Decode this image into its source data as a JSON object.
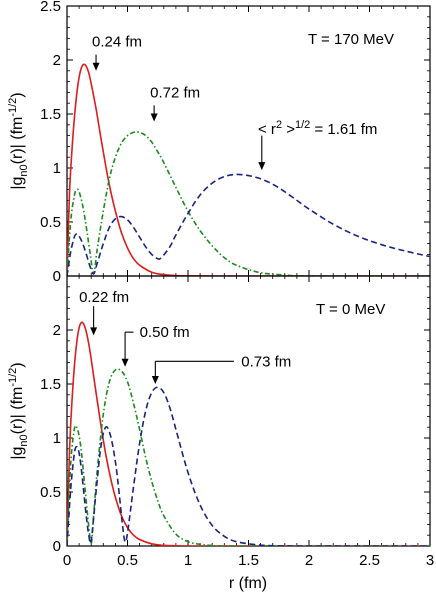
{
  "chart_data": [
    {
      "type": "line",
      "panel": "top",
      "ylabel_main": "|g",
      "ylabel_sub": "n0",
      "ylabel_mid": "(r)| (fm",
      "ylabel_sup": "-1/2",
      "ylabel_end": ")",
      "xlim": [
        0,
        3
      ],
      "ylim": [
        0,
        2.5
      ],
      "y_ticks": [
        "0",
        "0.5",
        "1",
        "1.5",
        "2",
        "2.5"
      ],
      "grid": false,
      "condition_label": "T = 170 MeV",
      "series": [
        {
          "color": "#dd1c1c",
          "style": "solid",
          "x": [
            0,
            0.02,
            0.04,
            0.06,
            0.08,
            0.1,
            0.12,
            0.14,
            0.16,
            0.18,
            0.2,
            0.24,
            0.28,
            0.32,
            0.36,
            0.4,
            0.45,
            0.5,
            0.55,
            0.6,
            0.7,
            0.8,
            0.9,
            1.0,
            1.2,
            1.4,
            3.0
          ],
          "y": [
            0,
            0.75,
            1.15,
            1.45,
            1.68,
            1.84,
            1.93,
            1.96,
            1.94,
            1.88,
            1.78,
            1.55,
            1.28,
            1.02,
            0.79,
            0.6,
            0.4,
            0.26,
            0.16,
            0.1,
            0.035,
            0.012,
            0.004,
            0.001,
            0,
            0,
            0
          ]
        },
        {
          "color": "#1a8c1a",
          "style": "dotdash",
          "x": [
            0,
            0.03,
            0.06,
            0.08,
            0.1,
            0.13,
            0.16,
            0.19,
            0.22,
            0.25,
            0.3,
            0.35,
            0.4,
            0.45,
            0.5,
            0.55,
            0.6,
            0.65,
            0.7,
            0.75,
            0.8,
            0.9,
            1.0,
            1.1,
            1.2,
            1.3,
            1.4,
            1.6,
            1.8,
            2.0,
            3.0
          ],
          "y": [
            0,
            0.5,
            0.74,
            0.8,
            0.78,
            0.65,
            0.45,
            0.22,
            0.02,
            0.25,
            0.6,
            0.9,
            1.1,
            1.23,
            1.3,
            1.33,
            1.33,
            1.3,
            1.24,
            1.15,
            1.05,
            0.82,
            0.6,
            0.42,
            0.28,
            0.17,
            0.1,
            0.03,
            0.01,
            0,
            0
          ]
        },
        {
          "color": "#1a237e",
          "style": "dashed",
          "x": [
            0,
            0.03,
            0.06,
            0.08,
            0.1,
            0.13,
            0.16,
            0.19,
            0.22,
            0.25,
            0.3,
            0.35,
            0.4,
            0.45,
            0.5,
            0.55,
            0.6,
            0.65,
            0.7,
            0.75,
            0.78,
            0.85,
            0.9,
            1.0,
            1.1,
            1.2,
            1.3,
            1.4,
            1.5,
            1.6,
            1.7,
            1.8,
            1.9,
            2.0,
            2.2,
            2.4,
            2.6,
            2.8,
            3.0
          ],
          "y": [
            0,
            0.22,
            0.36,
            0.39,
            0.37,
            0.3,
            0.2,
            0.09,
            0.02,
            0.12,
            0.3,
            0.45,
            0.53,
            0.55,
            0.52,
            0.45,
            0.36,
            0.27,
            0.2,
            0.16,
            0.17,
            0.27,
            0.38,
            0.58,
            0.75,
            0.86,
            0.92,
            0.94,
            0.93,
            0.9,
            0.85,
            0.78,
            0.7,
            0.62,
            0.48,
            0.37,
            0.29,
            0.23,
            0.18
          ]
        }
      ],
      "annotations": [
        {
          "text": "0.24 fm",
          "arrow_x": 0.24,
          "arrow_y_top": 2.05,
          "arrow_y_tip": 1.9,
          "text_x": 0.24,
          "text_y": 2.2,
          "align": "start"
        },
        {
          "text": "0.72 fm",
          "arrow_x": 0.72,
          "arrow_y_top": 1.58,
          "arrow_y_tip": 1.43,
          "text_x": 0.72,
          "text_y": 1.74,
          "align": "start"
        },
        {
          "text": "1.61 fm",
          "arrow_x": 1.61,
          "arrow_y_top": 1.3,
          "arrow_y_tip": 0.98,
          "text_x": 1.61,
          "text_y": 1.39,
          "align": "start"
        }
      ],
      "rms_label": {
        "open": "< r",
        "sup1": "2",
        "close": " >",
        "sup2": "1/2",
        "eq": " = "
      }
    },
    {
      "type": "line",
      "panel": "bottom",
      "xlabel": "r (fm)",
      "ylabel_main": "|g",
      "ylabel_sub": "n0",
      "ylabel_mid": "(r)| (fm",
      "ylabel_sup": "-1/2",
      "ylabel_end": ")",
      "xlim": [
        0,
        3
      ],
      "ylim": [
        0,
        2.5
      ],
      "x_ticks": [
        "0",
        "0.5",
        "1",
        "1.5",
        "2",
        "2.5",
        "3"
      ],
      "y_ticks": [
        "0",
        "0.5",
        "1",
        "1.5",
        "2"
      ],
      "grid": false,
      "condition_label": "T = 0 MeV",
      "series": [
        {
          "color": "#dd1c1c",
          "style": "solid",
          "x": [
            0,
            0.02,
            0.04,
            0.06,
            0.08,
            0.1,
            0.12,
            0.14,
            0.16,
            0.18,
            0.2,
            0.24,
            0.28,
            0.32,
            0.36,
            0.4,
            0.45,
            0.5,
            0.55,
            0.6,
            0.7,
            0.8,
            0.9,
            1.0,
            1.2,
            3.0
          ],
          "y": [
            0,
            0.85,
            1.32,
            1.65,
            1.88,
            2.02,
            2.07,
            2.05,
            1.98,
            1.87,
            1.73,
            1.42,
            1.12,
            0.85,
            0.63,
            0.45,
            0.28,
            0.17,
            0.1,
            0.06,
            0.02,
            0.006,
            0.002,
            0,
            0,
            0
          ]
        },
        {
          "color": "#1a8c1a",
          "style": "dotdash",
          "x": [
            0,
            0.03,
            0.06,
            0.08,
            0.1,
            0.12,
            0.15,
            0.18,
            0.2,
            0.22,
            0.25,
            0.3,
            0.35,
            0.4,
            0.45,
            0.5,
            0.55,
            0.6,
            0.65,
            0.7,
            0.75,
            0.8,
            0.9,
            1.0,
            1.1,
            1.2,
            1.4,
            3.0
          ],
          "y": [
            0,
            0.75,
            1.08,
            1.1,
            1.02,
            0.86,
            0.52,
            0.18,
            0.02,
            0.28,
            0.7,
            1.22,
            1.52,
            1.63,
            1.62,
            1.52,
            1.32,
            1.08,
            0.82,
            0.6,
            0.42,
            0.28,
            0.11,
            0.04,
            0.015,
            0.005,
            0,
            0
          ]
        },
        {
          "color": "#1a237e",
          "style": "dashed",
          "x": [
            0,
            0.03,
            0.06,
            0.08,
            0.1,
            0.12,
            0.14,
            0.16,
            0.18,
            0.2,
            0.24,
            0.28,
            0.32,
            0.36,
            0.4,
            0.43,
            0.46,
            0.48,
            0.5,
            0.55,
            0.6,
            0.65,
            0.7,
            0.75,
            0.8,
            0.85,
            0.9,
            1.0,
            1.1,
            1.2,
            1.3,
            1.4,
            1.6,
            1.8,
            2.0,
            3.0
          ],
          "y": [
            0,
            0.52,
            0.85,
            0.92,
            0.86,
            0.7,
            0.48,
            0.27,
            0.1,
            0.05,
            0.5,
            0.92,
            1.1,
            1.02,
            0.78,
            0.5,
            0.18,
            0.04,
            0.12,
            0.55,
            0.95,
            1.25,
            1.42,
            1.47,
            1.42,
            1.28,
            1.08,
            0.68,
            0.38,
            0.19,
            0.09,
            0.04,
            0.008,
            0.001,
            0,
            0
          ]
        }
      ],
      "annotations": [
        {
          "text": "0.22 fm",
          "arrow_x": 0.22,
          "arrow_y_top": 2.22,
          "arrow_y_tip": 1.95,
          "text_x": 0.1,
          "text_y": 2.23,
          "align": "start"
        },
        {
          "text": "0.50 fm",
          "arrow_x": 0.48,
          "arrow_y_top": 1.98,
          "arrow_y_tip": 1.66,
          "text_x": 0.6,
          "text_y": 1.83,
          "align": "start"
        },
        {
          "text": "0.73 fm",
          "arrow_x": 0.73,
          "arrow_y_top": 1.71,
          "arrow_y_tip": 1.5,
          "text_x": 1.4,
          "text_y": 1.64,
          "align": "start"
        }
      ]
    }
  ]
}
